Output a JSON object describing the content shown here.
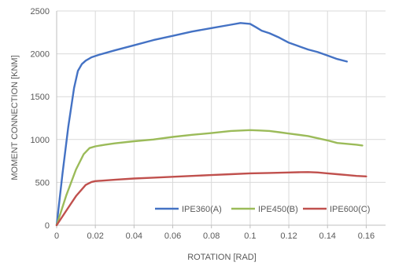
{
  "chart_data": {
    "type": "line",
    "title": "",
    "xlabel": "ROTATION [RAD]",
    "ylabel": "MOMENT CONNECTION [KNM]",
    "xlim": [
      0,
      0.17
    ],
    "ylim": [
      0,
      2500
    ],
    "xticks": [
      "0",
      "0.02",
      "0.04",
      "0.06",
      "0.08",
      "0.1",
      "0.12",
      "0.14",
      "0.16"
    ],
    "xtick_values": [
      0,
      0.02,
      0.04,
      0.06,
      0.08,
      0.1,
      0.12,
      0.14,
      0.16
    ],
    "yticks": [
      "0",
      "500",
      "1000",
      "1500",
      "2000",
      "2500"
    ],
    "ytick_values": [
      0,
      500,
      1000,
      1500,
      2000,
      2500
    ],
    "grid": true,
    "legend_position": "bottom-right",
    "series": [
      {
        "name": "IPE360(A)",
        "color": "#4472C4",
        "x": [
          0,
          0.003,
          0.006,
          0.009,
          0.011,
          0.013,
          0.015,
          0.018,
          0.022,
          0.03,
          0.04,
          0.05,
          0.06,
          0.07,
          0.08,
          0.09,
          0.095,
          0.1,
          0.103,
          0.106,
          0.11,
          0.115,
          0.12,
          0.125,
          0.13,
          0.135,
          0.14,
          0.145,
          0.15
        ],
        "y": [
          0,
          600,
          1150,
          1600,
          1800,
          1880,
          1920,
          1960,
          1990,
          2040,
          2100,
          2160,
          2210,
          2260,
          2300,
          2340,
          2360,
          2350,
          2310,
          2270,
          2240,
          2190,
          2130,
          2090,
          2050,
          2020,
          1980,
          1940,
          1910
        ]
      },
      {
        "name": "IPE450(B)",
        "color": "#9BBB59",
        "x": [
          0,
          0.005,
          0.01,
          0.014,
          0.017,
          0.02,
          0.025,
          0.03,
          0.04,
          0.05,
          0.06,
          0.07,
          0.08,
          0.09,
          0.1,
          0.105,
          0.11,
          0.115,
          0.12,
          0.13,
          0.14,
          0.145,
          0.15,
          0.155,
          0.158
        ],
        "y": [
          0,
          350,
          650,
          830,
          900,
          920,
          940,
          955,
          980,
          1000,
          1030,
          1055,
          1075,
          1100,
          1110,
          1105,
          1100,
          1085,
          1070,
          1040,
          990,
          960,
          950,
          940,
          930
        ]
      },
      {
        "name": "IPE600(C)",
        "color": "#C0504D",
        "x": [
          0,
          0.005,
          0.01,
          0.015,
          0.018,
          0.02,
          0.03,
          0.04,
          0.05,
          0.06,
          0.07,
          0.08,
          0.09,
          0.1,
          0.11,
          0.12,
          0.125,
          0.13,
          0.135,
          0.14,
          0.145,
          0.15,
          0.155,
          0.16
        ],
        "y": [
          0,
          170,
          340,
          470,
          505,
          515,
          530,
          545,
          555,
          565,
          575,
          585,
          595,
          605,
          610,
          615,
          618,
          620,
          615,
          605,
          595,
          585,
          575,
          570
        ]
      }
    ]
  }
}
